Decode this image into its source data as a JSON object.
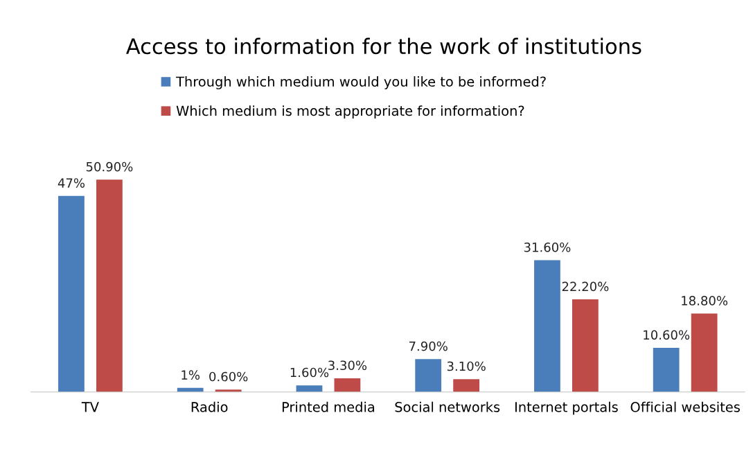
{
  "chart_data": {
    "type": "bar",
    "title": "Access to information for the work of institutions",
    "categories": [
      "TV",
      "Radio",
      "Printed media",
      "Social networks",
      "Internet portals",
      "Official websites"
    ],
    "series": [
      {
        "name": "Through which medium would you like to be informed?",
        "color": "#4a7ebb",
        "values": [
          47,
          1,
          1.6,
          7.9,
          31.6,
          10.6
        ],
        "value_labels": [
          "47%",
          "1%",
          "1.60%",
          "7.90%",
          "31.60%",
          "10.60%"
        ]
      },
      {
        "name": "Which medium is most appropriate for information?",
        "color": "#be4b48",
        "values": [
          50.9,
          0.6,
          3.3,
          3.1,
          22.2,
          18.8
        ],
        "value_labels": [
          "50.90%",
          "0.60%",
          "3.30%",
          "3.10%",
          "22.20%",
          "18.80%"
        ]
      }
    ],
    "legend": "top",
    "grid": false,
    "tick_labels": "x"
  }
}
